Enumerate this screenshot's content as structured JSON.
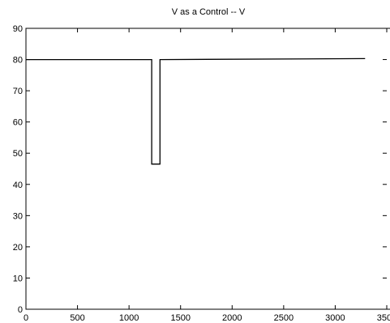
{
  "chart_data": {
    "type": "line",
    "title": "V as a Control -- V",
    "xlabel": "",
    "ylabel": "",
    "xlim": [
      0,
      3500
    ],
    "ylim": [
      0,
      90
    ],
    "xticks": [
      0,
      500,
      1000,
      1500,
      2000,
      2500,
      3000,
      3500
    ],
    "yticks": [
      0,
      10,
      20,
      30,
      40,
      50,
      60,
      70,
      80,
      90
    ],
    "grid": false,
    "series": [
      {
        "color": "#000000",
        "x": [
          0,
          1220,
          1220,
          1300,
          1300,
          3290
        ],
        "y": [
          80,
          80,
          46.5,
          46.5,
          80,
          80.3
        ]
      }
    ]
  }
}
